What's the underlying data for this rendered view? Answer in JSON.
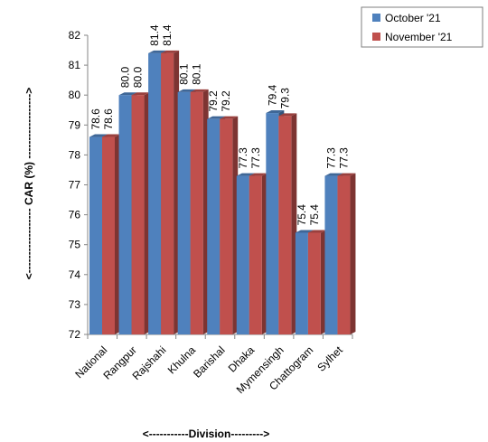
{
  "chart_data": {
    "type": "bar",
    "title": "",
    "xlabel": "<-----------Division--------->",
    "ylabel": "<------------------ CAR (%) ------------------>",
    "categories": [
      "National",
      "Rangpur",
      "Rajshahi",
      "Khulna",
      "Barishal",
      "Dhaka",
      "Mymensingh",
      "Chattogram",
      "Sylhet"
    ],
    "series": [
      {
        "name": "October '21",
        "color": "#4F81BD",
        "values": [
          78.6,
          80.0,
          81.4,
          80.1,
          79.2,
          77.3,
          79.4,
          75.4,
          77.3
        ],
        "labels": [
          "78.6",
          "80.0",
          "81.4",
          "80.1",
          "79.2",
          "77.3",
          "79.4",
          "75.4",
          "77.3"
        ]
      },
      {
        "name": "November '21",
        "color": "#C0504D",
        "values": [
          78.6,
          80.0,
          81.4,
          80.1,
          79.2,
          77.3,
          79.3,
          75.4,
          77.3
        ],
        "labels": [
          "78.6",
          "80.0",
          "81.4",
          "80.1",
          "79.2",
          "77.3",
          "79.3",
          "75.4",
          "77.3"
        ]
      }
    ],
    "ylim": [
      72,
      82
    ],
    "yticks": [
      "72",
      "73",
      "74",
      "75",
      "76",
      "77",
      "78",
      "79",
      "80",
      "81",
      "82"
    ],
    "grid": false,
    "legend_position": "top-right"
  }
}
